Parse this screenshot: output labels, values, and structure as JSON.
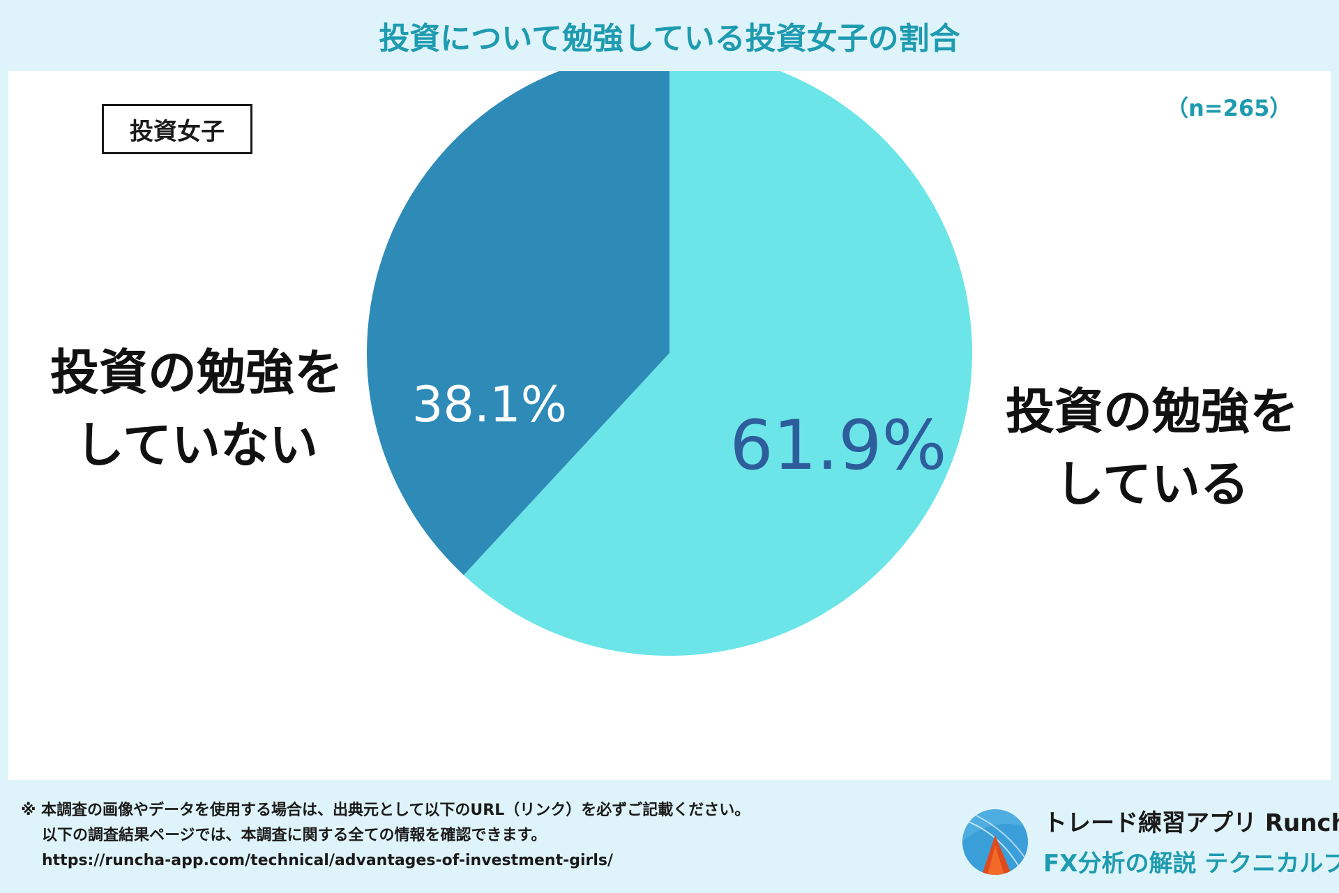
{
  "title": "投資について勉強している投資女子の割合",
  "group_label": "投資女子",
  "sample_size": "（n=265）",
  "chart_data": {
    "type": "pie",
    "title": "投資について勉強している投資女子の割合",
    "slices": [
      {
        "label": "投資の勉強をしている",
        "value": 61.9,
        "value_label": "61.9%",
        "color": "#6ce5e8",
        "text_color": "#2e5d9c"
      },
      {
        "label": "投資の勉強をしていない",
        "value": 38.1,
        "value_label": "38.1%",
        "color": "#2e8bb8",
        "text_color": "#ffffff"
      }
    ]
  },
  "labels": {
    "left_line1": "投資の勉強を",
    "left_line2": "していない",
    "right_line1": "投資の勉強を",
    "right_line2": "している"
  },
  "footer": {
    "note_line1": "※ 本調査の画像やデータを使用する場合は、出典元として以下のURL（リンク）を必ずご記載ください。",
    "note_line2": "以下の調査結果ページでは、本調査に関する全ての情報を確認できます。",
    "note_url": "https://runcha-app.com/technical/advantages-of-investment-girls/",
    "brand_name": "トレード練習アプリ  Runcha",
    "brand_sub": "FX分析の解説  テクニカルブック"
  },
  "colors": {
    "accent": "#1e9bb0",
    "background": "#dff4fa"
  }
}
